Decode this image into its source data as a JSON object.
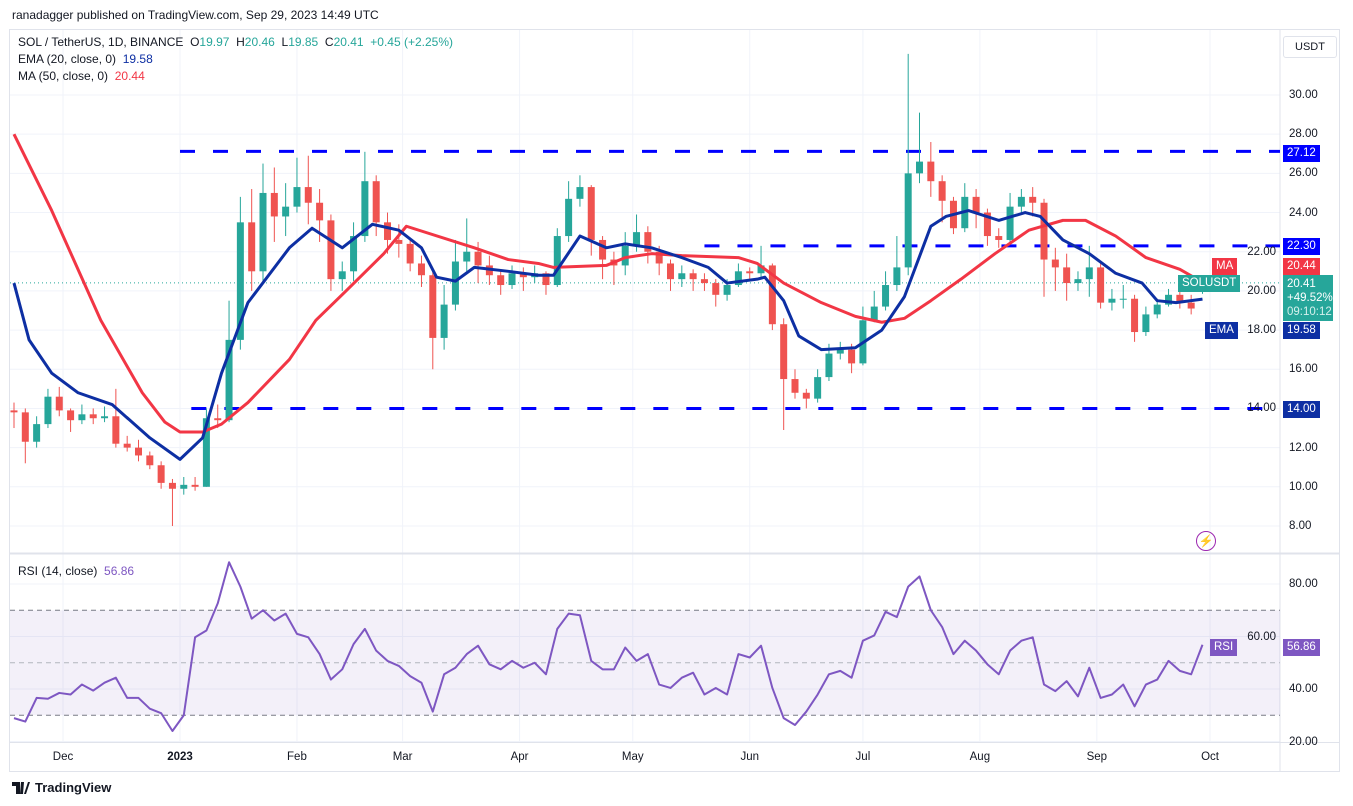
{
  "header": {
    "published": "ranadagger published on TradingView.com, Sep 29, 2023 14:49 UTC"
  },
  "legend": {
    "symbol": "SOL / TetherUS, 1D, BINANCE",
    "o_label": "O",
    "o": "19.97",
    "h_label": "H",
    "h": "20.46",
    "l_label": "L",
    "l": "19.85",
    "c_label": "C",
    "c": "20.41",
    "change": "+0.45 (+2.25%)",
    "ema_label": "EMA (20, close, 0)",
    "ema_value": "19.58",
    "ma_label": "MA (50, close, 0)",
    "ma_value": "20.44",
    "rsi_label": "RSI (14, close)",
    "rsi_value": "56.86"
  },
  "price_axis": {
    "currency": "USDT",
    "ticks": [
      "30.00",
      "28.00",
      "26.00",
      "24.00",
      "22.00",
      "20.00",
      "18.00",
      "16.00",
      "14.00",
      "12.00",
      "10.00",
      "8.00"
    ]
  },
  "rsi_axis": {
    "ticks": [
      "80.00",
      "60.00",
      "40.00",
      "20.00"
    ]
  },
  "time_axis": {
    "ticks": [
      {
        "label": "Dec",
        "date": "2022-12-01"
      },
      {
        "label": "2023",
        "date": "2023-01-01",
        "bold": true
      },
      {
        "label": "Feb",
        "date": "2023-02-01"
      },
      {
        "label": "Mar",
        "date": "2023-03-01"
      },
      {
        "label": "Apr",
        "date": "2023-04-01"
      },
      {
        "label": "May",
        "date": "2023-05-01"
      },
      {
        "label": "Jun",
        "date": "2023-06-01"
      },
      {
        "label": "Jul",
        "date": "2023-07-01"
      },
      {
        "label": "Aug",
        "date": "2023-08-01"
      },
      {
        "label": "Sep",
        "date": "2023-09-01"
      },
      {
        "label": "Oct",
        "date": "2023-10-01"
      }
    ]
  },
  "tags": {
    "level_2230": "22.30",
    "level_2712": "27.12",
    "level_1400": "14.00",
    "ma_tag": "MA",
    "ma_value": "20.44",
    "symbol_tag": "SOLUSDT",
    "last_price": "20.41",
    "change_pct": "+49.52%",
    "countdown": "09:10:12",
    "ema_tag": "EMA",
    "ema_value": "19.58",
    "rsi_tag": "RSI",
    "rsi_value": "56.86"
  },
  "footer": {
    "brand": "TradingView"
  },
  "colors": {
    "up": "#26a69a",
    "down": "#ef5350",
    "ema": "#0d2fa3",
    "ma": "#f23645",
    "levels": "#0000ff",
    "rsi": "#7e57c2"
  },
  "chart_data": {
    "type": "candlestick",
    "interval": "1D",
    "ylim": [
      8,
      32
    ],
    "levels": [
      {
        "value": 27.12,
        "from": "2023-01-01"
      },
      {
        "value": 22.3,
        "from": "2023-05-20"
      },
      {
        "value": 14.0,
        "from": "2023-01-04"
      }
    ],
    "candles": [
      [
        "2022-11-18",
        13.9,
        14.3,
        13.0,
        13.8
      ],
      [
        "2022-11-21",
        13.8,
        14.0,
        11.2,
        12.3
      ],
      [
        "2022-11-24",
        12.3,
        13.6,
        12.0,
        13.2
      ],
      [
        "2022-11-27",
        13.2,
        15.0,
        13.0,
        14.6
      ],
      [
        "2022-11-30",
        14.6,
        15.1,
        13.6,
        13.9
      ],
      [
        "2022-12-03",
        13.9,
        14.0,
        12.8,
        13.4
      ],
      [
        "2022-12-06",
        13.4,
        14.2,
        13.2,
        13.7
      ],
      [
        "2022-12-09",
        13.7,
        14.0,
        13.2,
        13.5
      ],
      [
        "2022-12-12",
        13.5,
        14.1,
        13.3,
        13.6
      ],
      [
        "2022-12-15",
        13.6,
        15.0,
        12.0,
        12.2
      ],
      [
        "2022-12-18",
        12.2,
        12.6,
        11.8,
        12.0
      ],
      [
        "2022-12-21",
        12.0,
        12.4,
        11.3,
        11.6
      ],
      [
        "2022-12-24",
        11.6,
        11.8,
        10.9,
        11.1
      ],
      [
        "2022-12-27",
        11.1,
        11.3,
        9.9,
        10.2
      ],
      [
        "2022-12-30",
        10.2,
        10.4,
        8.0,
        9.9
      ],
      [
        "2023-01-02",
        9.9,
        10.5,
        9.6,
        10.1
      ],
      [
        "2023-01-05",
        10.1,
        10.5,
        9.8,
        10.0
      ],
      [
        "2023-01-08",
        10.0,
        14.0,
        10.0,
        13.5
      ],
      [
        "2023-01-11",
        13.5,
        14.2,
        13.0,
        13.4
      ],
      [
        "2023-01-14",
        13.4,
        19.5,
        13.3,
        17.5
      ],
      [
        "2023-01-17",
        17.5,
        24.8,
        17.0,
        23.5
      ],
      [
        "2023-01-20",
        23.5,
        25.2,
        20.0,
        21.0
      ],
      [
        "2023-01-23",
        21.0,
        26.5,
        20.5,
        25.0
      ],
      [
        "2023-01-26",
        25.0,
        26.3,
        22.5,
        23.8
      ],
      [
        "2023-01-29",
        23.8,
        25.5,
        22.8,
        24.3
      ],
      [
        "2023-02-01",
        24.3,
        26.8,
        24.0,
        25.3
      ],
      [
        "2023-02-04",
        25.3,
        26.9,
        23.4,
        24.5
      ],
      [
        "2023-02-07",
        24.5,
        25.2,
        22.5,
        23.6
      ],
      [
        "2023-02-10",
        23.6,
        23.9,
        20.0,
        20.6
      ],
      [
        "2023-02-13",
        20.6,
        21.5,
        20.0,
        21.0
      ],
      [
        "2023-02-16",
        21.0,
        23.5,
        20.5,
        22.8
      ],
      [
        "2023-02-19",
        22.8,
        27.1,
        22.5,
        25.6
      ],
      [
        "2023-02-22",
        25.6,
        25.9,
        22.8,
        23.5
      ],
      [
        "2023-02-25",
        23.5,
        24.0,
        21.9,
        22.6
      ],
      [
        "2023-02-28",
        22.6,
        23.4,
        21.7,
        22.4
      ],
      [
        "2023-03-03",
        22.4,
        22.7,
        21.0,
        21.4
      ],
      [
        "2023-03-06",
        21.4,
        21.8,
        20.2,
        20.8
      ],
      [
        "2023-03-09",
        20.8,
        21.0,
        16.0,
        17.6
      ],
      [
        "2023-03-12",
        17.6,
        20.3,
        17.0,
        19.3
      ],
      [
        "2023-03-15",
        19.3,
        22.6,
        19.0,
        21.5
      ],
      [
        "2023-03-18",
        21.5,
        23.7,
        21.0,
        22.0
      ],
      [
        "2023-03-21",
        22.0,
        22.5,
        20.4,
        21.3
      ],
      [
        "2023-03-24",
        21.3,
        21.8,
        20.3,
        20.8
      ],
      [
        "2023-03-27",
        20.8,
        21.0,
        19.8,
        20.3
      ],
      [
        "2023-03-30",
        20.3,
        21.3,
        20.1,
        20.9
      ],
      [
        "2023-04-02",
        20.9,
        21.2,
        20.0,
        20.7
      ],
      [
        "2023-04-05",
        20.7,
        21.3,
        20.4,
        20.9
      ],
      [
        "2023-04-08",
        20.9,
        21.0,
        19.8,
        20.3
      ],
      [
        "2023-04-11",
        20.3,
        23.2,
        20.2,
        22.8
      ],
      [
        "2023-04-14",
        22.8,
        25.6,
        22.5,
        24.7
      ],
      [
        "2023-04-17",
        24.7,
        25.9,
        24.3,
        25.3
      ],
      [
        "2023-04-20",
        25.3,
        25.4,
        21.8,
        22.6
      ],
      [
        "2023-04-23",
        22.6,
        22.8,
        20.6,
        21.6
      ],
      [
        "2023-04-26",
        21.6,
        22.0,
        20.3,
        21.3
      ],
      [
        "2023-04-29",
        21.3,
        23.0,
        20.8,
        22.3
      ],
      [
        "2023-05-02",
        22.3,
        23.9,
        22.0,
        23.0
      ],
      [
        "2023-05-05",
        23.0,
        23.3,
        21.4,
        22.0
      ],
      [
        "2023-05-08",
        22.0,
        22.3,
        20.8,
        21.4
      ],
      [
        "2023-05-11",
        21.4,
        21.6,
        20.0,
        20.6
      ],
      [
        "2023-05-14",
        20.6,
        21.3,
        20.2,
        20.9
      ],
      [
        "2023-05-17",
        20.9,
        21.1,
        20.0,
        20.6
      ],
      [
        "2023-05-20",
        20.6,
        20.9,
        20.0,
        20.4
      ],
      [
        "2023-05-23",
        20.4,
        20.6,
        19.2,
        19.8
      ],
      [
        "2023-05-26",
        19.8,
        20.6,
        19.5,
        20.3
      ],
      [
        "2023-05-29",
        20.3,
        21.4,
        20.2,
        21.0
      ],
      [
        "2023-06-01",
        21.0,
        21.2,
        20.5,
        20.9
      ],
      [
        "2023-06-04",
        20.9,
        22.3,
        20.6,
        21.3
      ],
      [
        "2023-06-07",
        21.3,
        21.4,
        18.0,
        18.3
      ],
      [
        "2023-06-10",
        18.3,
        18.6,
        12.9,
        15.5
      ],
      [
        "2023-06-13",
        15.5,
        16.0,
        14.5,
        14.8
      ],
      [
        "2023-06-16",
        14.8,
        15.0,
        14.0,
        14.5
      ],
      [
        "2023-06-19",
        14.5,
        16.0,
        14.3,
        15.6
      ],
      [
        "2023-06-22",
        15.6,
        17.3,
        15.4,
        16.8
      ],
      [
        "2023-06-25",
        16.8,
        17.4,
        16.5,
        17.0
      ],
      [
        "2023-06-28",
        17.0,
        17.3,
        15.8,
        16.3
      ],
      [
        "2023-07-01",
        16.3,
        19.2,
        16.2,
        18.5
      ],
      [
        "2023-07-04",
        18.5,
        20.0,
        18.4,
        19.2
      ],
      [
        "2023-07-07",
        19.2,
        21.0,
        19.0,
        20.3
      ],
      [
        "2023-07-10",
        20.3,
        22.8,
        20.0,
        21.2
      ],
      [
        "2023-07-13",
        21.2,
        32.1,
        20.8,
        26.0
      ],
      [
        "2023-07-16",
        26.0,
        29.1,
        25.5,
        26.6
      ],
      [
        "2023-07-19",
        26.6,
        27.6,
        24.8,
        25.6
      ],
      [
        "2023-07-22",
        25.6,
        25.9,
        23.5,
        24.6
      ],
      [
        "2023-07-25",
        24.6,
        24.8,
        22.9,
        23.2
      ],
      [
        "2023-07-28",
        23.2,
        25.5,
        23.0,
        24.8
      ],
      [
        "2023-07-31",
        24.8,
        25.2,
        23.2,
        24.0
      ],
      [
        "2023-08-03",
        24.0,
        24.2,
        22.3,
        22.8
      ],
      [
        "2023-08-06",
        22.8,
        23.2,
        22.2,
        22.6
      ],
      [
        "2023-08-09",
        22.6,
        25.0,
        22.4,
        24.3
      ],
      [
        "2023-08-12",
        24.3,
        25.2,
        24.0,
        24.8
      ],
      [
        "2023-08-15",
        24.8,
        25.3,
        23.8,
        24.5
      ],
      [
        "2023-08-18",
        24.5,
        24.7,
        19.7,
        21.6
      ],
      [
        "2023-08-21",
        21.6,
        22.2,
        20.0,
        21.2
      ],
      [
        "2023-08-24",
        21.2,
        21.9,
        19.5,
        20.4
      ],
      [
        "2023-08-27",
        20.4,
        21.0,
        20.0,
        20.6
      ],
      [
        "2023-08-30",
        20.6,
        22.3,
        19.7,
        21.2
      ],
      [
        "2023-09-02",
        21.2,
        21.4,
        19.1,
        19.4
      ],
      [
        "2023-09-05",
        19.4,
        20.1,
        19.0,
        19.6
      ],
      [
        "2023-09-08",
        19.6,
        20.3,
        19.1,
        19.6
      ],
      [
        "2023-09-11",
        19.6,
        19.8,
        17.4,
        17.9
      ],
      [
        "2023-09-14",
        17.9,
        19.2,
        17.7,
        18.8
      ],
      [
        "2023-09-17",
        18.8,
        19.6,
        18.6,
        19.3
      ],
      [
        "2023-09-20",
        19.3,
        20.1,
        19.2,
        19.8
      ],
      [
        "2023-09-23",
        19.8,
        20.0,
        19.1,
        19.4
      ],
      [
        "2023-09-26",
        19.4,
        19.8,
        18.8,
        19.1
      ],
      [
        "2023-09-29",
        19.97,
        20.46,
        19.85,
        20.41
      ]
    ],
    "ema20": [
      [
        "2022-11-18",
        20.4
      ],
      [
        "2022-11-22",
        17.5
      ],
      [
        "2022-11-28",
        15.8
      ],
      [
        "2022-12-05",
        14.8
      ],
      [
        "2022-12-14",
        14.2
      ],
      [
        "2022-12-24",
        12.5
      ],
      [
        "2023-01-01",
        11.4
      ],
      [
        "2023-01-07",
        12.5
      ],
      [
        "2023-01-12",
        15.8
      ],
      [
        "2023-01-19",
        19.4
      ],
      [
        "2023-01-30",
        22.2
      ],
      [
        "2023-02-05",
        23.2
      ],
      [
        "2023-02-13",
        22.2
      ],
      [
        "2023-02-21",
        23.4
      ],
      [
        "2023-02-28",
        23.1
      ],
      [
        "2023-03-06",
        22.2
      ],
      [
        "2023-03-10",
        20.7
      ],
      [
        "2023-03-15",
        20.5
      ],
      [
        "2023-03-20",
        21.2
      ],
      [
        "2023-03-29",
        21.0
      ],
      [
        "2023-04-06",
        20.8
      ],
      [
        "2023-04-10",
        20.8
      ],
      [
        "2023-04-17",
        22.8
      ],
      [
        "2023-04-24",
        22.2
      ],
      [
        "2023-04-29",
        22.4
      ],
      [
        "2023-05-06",
        22.2
      ],
      [
        "2023-05-14",
        21.7
      ],
      [
        "2023-05-21",
        21.2
      ],
      [
        "2023-05-26",
        20.4
      ],
      [
        "2023-06-03",
        20.6
      ],
      [
        "2023-06-05",
        20.7
      ],
      [
        "2023-06-10",
        19.5
      ],
      [
        "2023-06-14",
        17.7
      ],
      [
        "2023-06-20",
        17.0
      ],
      [
        "2023-06-29",
        17.1
      ],
      [
        "2023-07-06",
        18.0
      ],
      [
        "2023-07-12",
        19.7
      ],
      [
        "2023-07-19",
        23.3
      ],
      [
        "2023-07-23",
        23.8
      ],
      [
        "2023-07-29",
        24.1
      ],
      [
        "2023-08-06",
        23.6
      ],
      [
        "2023-08-13",
        24.0
      ],
      [
        "2023-08-17",
        23.8
      ],
      [
        "2023-08-23",
        22.6
      ],
      [
        "2023-08-30",
        21.9
      ],
      [
        "2023-09-06",
        20.9
      ],
      [
        "2023-09-13",
        20.4
      ],
      [
        "2023-09-17",
        19.5
      ],
      [
        "2023-09-22",
        19.4
      ],
      [
        "2023-09-29",
        19.58
      ]
    ],
    "ma50": [
      [
        "2022-11-18",
        28.0
      ],
      [
        "2022-11-28",
        24.1
      ],
      [
        "2022-12-11",
        18.5
      ],
      [
        "2022-12-22",
        14.8
      ],
      [
        "2022-12-28",
        13.3
      ],
      [
        "2023-01-01",
        12.8
      ],
      [
        "2023-01-07",
        12.8
      ],
      [
        "2023-01-12",
        13.2
      ],
      [
        "2023-01-19",
        14.3
      ],
      [
        "2023-01-30",
        16.5
      ],
      [
        "2023-02-06",
        18.5
      ],
      [
        "2023-02-14",
        20.0
      ],
      [
        "2023-02-24",
        21.9
      ],
      [
        "2023-03-02",
        23.3
      ],
      [
        "2023-03-20",
        22.2
      ],
      [
        "2023-03-29",
        21.6
      ],
      [
        "2023-04-06",
        21.4
      ],
      [
        "2023-04-10",
        21.2
      ],
      [
        "2023-04-24",
        21.3
      ],
      [
        "2023-04-29",
        21.7
      ],
      [
        "2023-05-06",
        21.9
      ],
      [
        "2023-05-14",
        21.8
      ],
      [
        "2023-05-29",
        21.7
      ],
      [
        "2023-06-03",
        21.4
      ],
      [
        "2023-06-10",
        20.4
      ],
      [
        "2023-06-20",
        19.4
      ],
      [
        "2023-06-29",
        18.7
      ],
      [
        "2023-07-06",
        18.4
      ],
      [
        "2023-07-12",
        18.6
      ],
      [
        "2023-07-19",
        19.5
      ],
      [
        "2023-07-27",
        20.6
      ],
      [
        "2023-08-05",
        21.9
      ],
      [
        "2023-08-14",
        23.1
      ],
      [
        "2023-08-23",
        23.6
      ],
      [
        "2023-08-29",
        23.6
      ],
      [
        "2023-09-06",
        22.8
      ],
      [
        "2023-09-14",
        21.7
      ],
      [
        "2023-09-23",
        21.1
      ],
      [
        "2023-09-29",
        20.44
      ]
    ],
    "rsi": {
      "ylim": [
        20,
        90
      ],
      "bands": [
        30,
        50,
        70
      ],
      "values": [
        28.9,
        27.6,
        36.6,
        36.3,
        38.5,
        37.9,
        41.7,
        39.4,
        42.4,
        44.3,
        36.6,
        36.6,
        32.5,
        30.8,
        24.0,
        30.0,
        59.7,
        62.3,
        72.6,
        88.3,
        79.0,
        66.8,
        70.0,
        66.1,
        68.7,
        61.0,
        59.7,
        53.3,
        43.6,
        47.5,
        57.1,
        62.9,
        54.6,
        50.7,
        48.8,
        44.9,
        42.4,
        31.4,
        45.6,
        48.1,
        53.3,
        56.5,
        49.4,
        47.5,
        50.7,
        48.1,
        50.0,
        45.6,
        62.9,
        68.7,
        68.1,
        50.7,
        47.5,
        47.5,
        55.8,
        50.7,
        53.3,
        41.7,
        40.4,
        44.3,
        46.2,
        37.9,
        40.4,
        37.9,
        53.3,
        52.0,
        56.5,
        40.4,
        28.9,
        26.3,
        31.4,
        37.9,
        45.6,
        46.9,
        44.3,
        58.4,
        60.4,
        69.4,
        67.4,
        79.0,
        82.9,
        70.0,
        63.6,
        53.3,
        58.4,
        54.6,
        49.4,
        45.6,
        54.6,
        58.4,
        59.7,
        41.7,
        39.2,
        43.0,
        37.2,
        48.1,
        36.6,
        37.9,
        41.7,
        33.4,
        41.7,
        43.6,
        50.7,
        46.9,
        45.6,
        56.86
      ]
    }
  }
}
